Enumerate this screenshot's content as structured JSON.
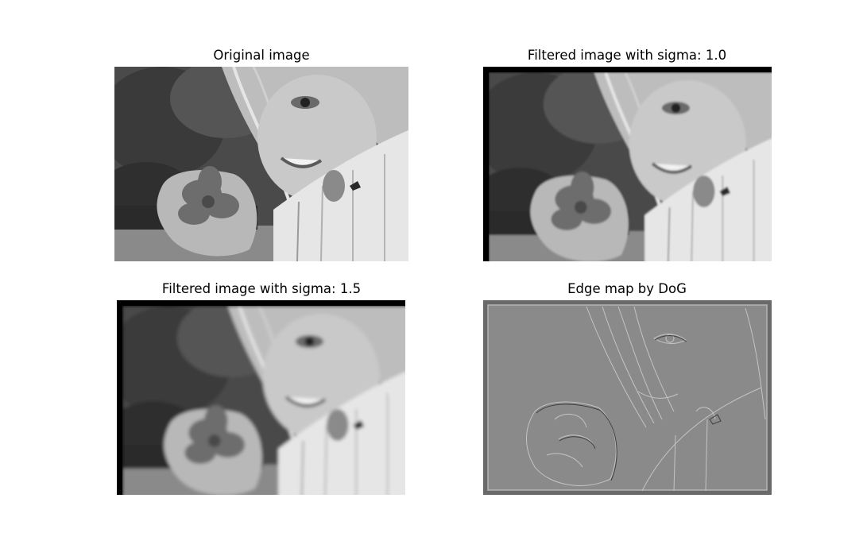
{
  "figure": {
    "panels": [
      {
        "title": "Original image"
      },
      {
        "title": "Filtered image with sigma: 1.0"
      },
      {
        "title": "Filtered image with sigma: 1.5"
      },
      {
        "title": "Edge map by DoG"
      }
    ]
  }
}
